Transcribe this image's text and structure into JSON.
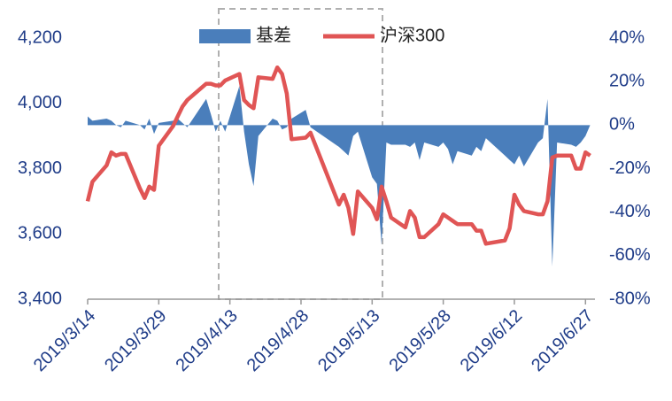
{
  "chart_data": {
    "type": "line",
    "x": [
      "2019/3/14",
      "2019/3/15",
      "2019/3/18",
      "2019/3/19",
      "2019/3/20",
      "2019/3/21",
      "2019/3/22",
      "2019/3/25",
      "2019/3/26",
      "2019/3/27",
      "2019/3/28",
      "2019/3/29",
      "2019/4/1",
      "2019/4/2",
      "2019/4/3",
      "2019/4/4",
      "2019/4/8",
      "2019/4/9",
      "2019/4/10",
      "2019/4/11",
      "2019/4/12",
      "2019/4/15",
      "2019/4/16",
      "2019/4/17",
      "2019/4/18",
      "2019/4/19",
      "2019/4/22",
      "2019/4/23",
      "2019/4/24",
      "2019/4/25",
      "2019/4/26",
      "2019/4/29",
      "2019/4/30",
      "2019/5/6",
      "2019/5/7",
      "2019/5/8",
      "2019/5/9",
      "2019/5/10",
      "2019/5/13",
      "2019/5/14",
      "2019/5/15",
      "2019/5/16",
      "2019/5/17",
      "2019/5/20",
      "2019/5/21",
      "2019/5/22",
      "2019/5/23",
      "2019/5/24",
      "2019/5/27",
      "2019/5/28",
      "2019/5/29",
      "2019/5/30",
      "2019/5/31",
      "2019/6/3",
      "2019/6/4",
      "2019/6/5",
      "2019/6/6",
      "2019/6/10",
      "2019/6/11",
      "2019/6/12",
      "2019/6/13",
      "2019/6/14",
      "2019/6/17",
      "2019/6/18",
      "2019/6/19",
      "2019/6/20",
      "2019/6/21",
      "2019/6/24",
      "2019/6/25",
      "2019/6/26",
      "2019/6/27",
      "2019/6/28"
    ],
    "xlim": [
      "2019/3/14",
      "2019/6/29"
    ],
    "xticks": [
      "2019/3/14",
      "2019/3/29",
      "2019/4/13",
      "2019/4/28",
      "2019/5/13",
      "2019/5/28",
      "2019/6/12",
      "2019/6/27"
    ],
    "series": [
      {
        "name": "基差",
        "type": "area",
        "axis": "y2",
        "color": "#4a7ebb",
        "values": [
          4,
          2,
          3,
          2,
          0,
          -1,
          2,
          0,
          -2,
          3,
          -4,
          1,
          2,
          3,
          1,
          -1,
          12,
          5,
          -3,
          2,
          -3,
          18,
          -3,
          -18,
          -28,
          -5,
          3,
          2,
          -2,
          -1,
          3,
          7,
          -1,
          -10,
          -12,
          -14,
          -5,
          -3,
          -24,
          -27,
          -55,
          -8,
          -9,
          -9,
          -10,
          -8,
          -16,
          -8,
          -10,
          -8,
          -11,
          -18,
          -12,
          -14,
          -10,
          -12,
          -6,
          -14,
          -16,
          -18,
          -14,
          -19,
          -8,
          -6,
          12,
          -65,
          -8,
          -9,
          -10,
          -8,
          -5,
          0
        ]
      },
      {
        "name": "沪深300",
        "type": "line",
        "axis": "y",
        "color": "#e05555",
        "values": [
          3700,
          3760,
          3810,
          3850,
          3840,
          3845,
          3845,
          3740,
          3710,
          3745,
          3735,
          3870,
          3930,
          3960,
          3990,
          4010,
          4060,
          4060,
          4055,
          4055,
          4070,
          4090,
          4010,
          3995,
          3985,
          4080,
          4075,
          4110,
          4090,
          4030,
          3890,
          3895,
          3910,
          3690,
          3720,
          3680,
          3600,
          3730,
          3680,
          3645,
          3745,
          3700,
          3650,
          3620,
          3670,
          3650,
          3590,
          3590,
          3630,
          3660,
          3650,
          3640,
          3630,
          3630,
          3610,
          3610,
          3570,
          3580,
          3617,
          3720,
          3690,
          3670,
          3660,
          3660,
          3700,
          3834,
          3840,
          3840,
          3800,
          3800,
          3850,
          3840
        ]
      }
    ],
    "ylim": [
      3400,
      4200
    ],
    "yticks": [
      {
        "value": 3400,
        "label": "3,400"
      },
      {
        "value": 3600,
        "label": "3,600"
      },
      {
        "value": 3800,
        "label": "3,800"
      },
      {
        "value": 4000,
        "label": "4,000"
      },
      {
        "value": 4200,
        "label": "4,200"
      }
    ],
    "y2lim": [
      -80,
      40
    ],
    "y2ticks": [
      {
        "value": -80,
        "label": "-80%"
      },
      {
        "value": -60,
        "label": "-60%"
      },
      {
        "value": -40,
        "label": "-40%"
      },
      {
        "value": -20,
        "label": "-20%"
      },
      {
        "value": 0,
        "label": "0%"
      },
      {
        "value": 20,
        "label": "20%"
      },
      {
        "value": 40,
        "label": "40%"
      }
    ],
    "legend": "top"
  }
}
